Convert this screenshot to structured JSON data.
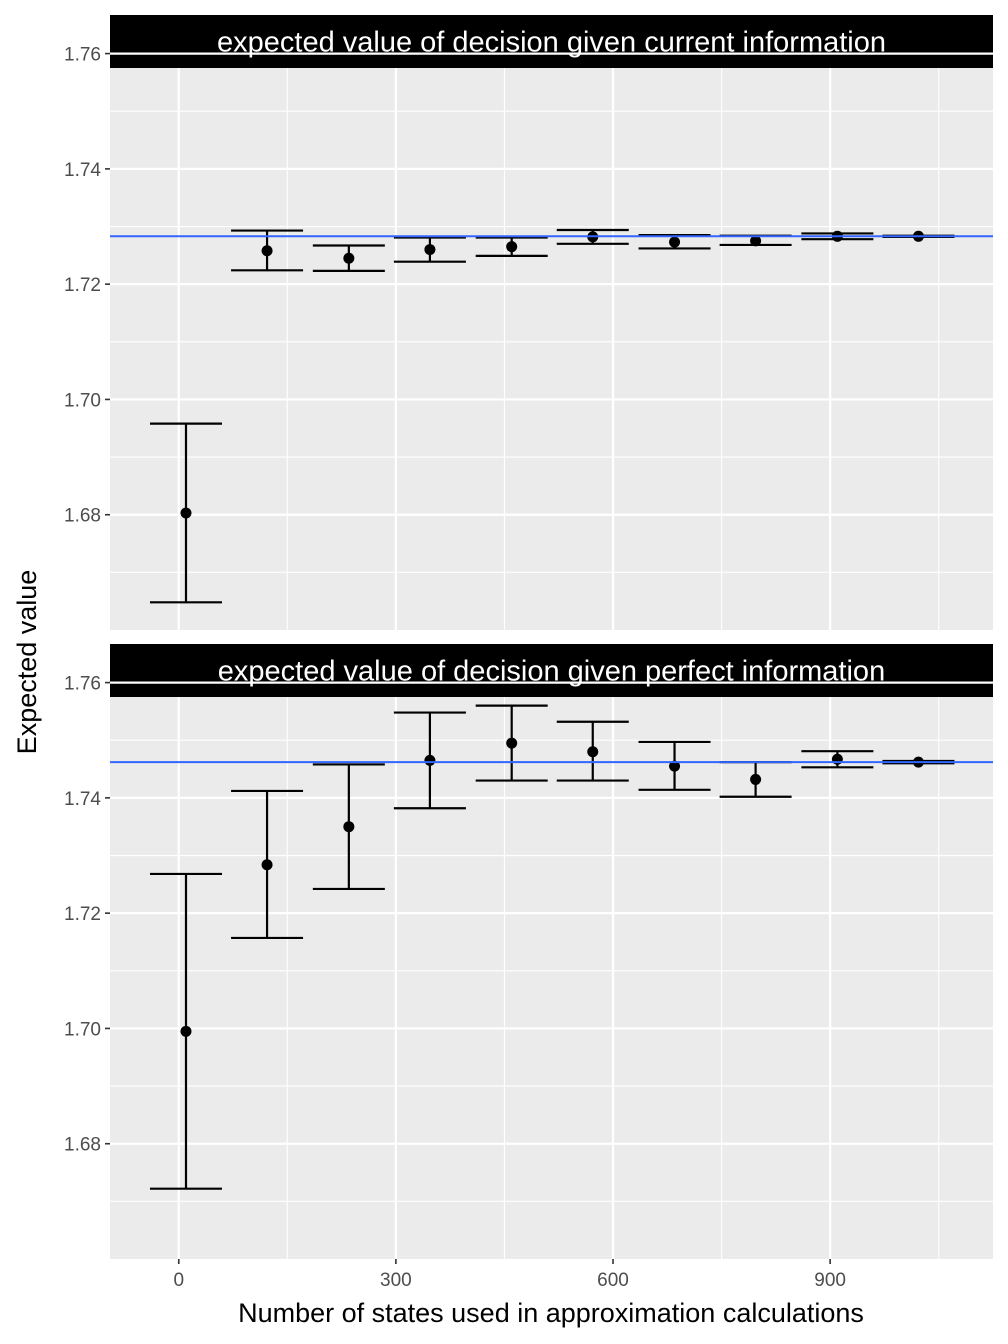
{
  "chart_data": {
    "type": "errorbar",
    "xlabel": "Number of states used in approximation calculations",
    "ylabel": "Expected value",
    "x_ticks": [
      0,
      300,
      600,
      900
    ],
    "xlim": [
      -95,
      1125
    ],
    "grid": true,
    "reference_line_color": "#3366ff",
    "point_color": "#000000",
    "panel_background": "#ebebeb",
    "strip_background": "#000000",
    "panels": [
      {
        "title": "expected value of decision given current information",
        "ylim": [
          1.66,
          1.7575
        ],
        "y_ticks": [
          1.68,
          1.7,
          1.72,
          1.74,
          1.76
        ],
        "y_tick_labels": [
          "1.68",
          "1.70",
          "1.72",
          "1.74",
          "1.76"
        ],
        "reference_value": 1.7283,
        "points": [
          {
            "x": 10,
            "y": 1.6803,
            "lower": 1.6648,
            "upper": 1.6958
          },
          {
            "x": 122,
            "y": 1.7258,
            "lower": 1.7224,
            "upper": 1.7293
          },
          {
            "x": 235,
            "y": 1.7245,
            "lower": 1.7223,
            "upper": 1.7267
          },
          {
            "x": 347,
            "y": 1.726,
            "lower": 1.7239,
            "upper": 1.7281
          },
          {
            "x": 460,
            "y": 1.7265,
            "lower": 1.7249,
            "upper": 1.7281
          },
          {
            "x": 572,
            "y": 1.7282,
            "lower": 1.727,
            "upper": 1.7294
          },
          {
            "x": 685,
            "y": 1.7273,
            "lower": 1.7262,
            "upper": 1.7285
          },
          {
            "x": 797,
            "y": 1.7275,
            "lower": 1.7268,
            "upper": 1.7284
          },
          {
            "x": 910,
            "y": 1.7283,
            "lower": 1.7278,
            "upper": 1.7288
          },
          {
            "x": 1022,
            "y": 1.7283,
            "lower": 1.7282,
            "upper": 1.7284
          }
        ]
      },
      {
        "title": "expected value of decision given perfect information",
        "ylim": [
          1.66,
          1.7575
        ],
        "y_ticks": [
          1.68,
          1.7,
          1.72,
          1.74,
          1.76
        ],
        "y_tick_labels": [
          "1.68",
          "1.70",
          "1.72",
          "1.74",
          "1.76"
        ],
        "reference_value": 1.7462,
        "points": [
          {
            "x": 10,
            "y": 1.6995,
            "lower": 1.6722,
            "upper": 1.7268
          },
          {
            "x": 122,
            "y": 1.7284,
            "lower": 1.7157,
            "upper": 1.7412
          },
          {
            "x": 235,
            "y": 1.735,
            "lower": 1.7242,
            "upper": 1.7458
          },
          {
            "x": 347,
            "y": 1.7465,
            "lower": 1.7382,
            "upper": 1.7548
          },
          {
            "x": 460,
            "y": 1.7495,
            "lower": 1.743,
            "upper": 1.756
          },
          {
            "x": 572,
            "y": 1.748,
            "lower": 1.743,
            "upper": 1.7532
          },
          {
            "x": 685,
            "y": 1.7455,
            "lower": 1.7414,
            "upper": 1.7497
          },
          {
            "x": 797,
            "y": 1.7432,
            "lower": 1.7402,
            "upper": 1.7462
          },
          {
            "x": 910,
            "y": 1.7467,
            "lower": 1.7453,
            "upper": 1.7481
          },
          {
            "x": 1022,
            "y": 1.7462,
            "lower": 1.746,
            "upper": 1.7464
          }
        ]
      }
    ]
  }
}
